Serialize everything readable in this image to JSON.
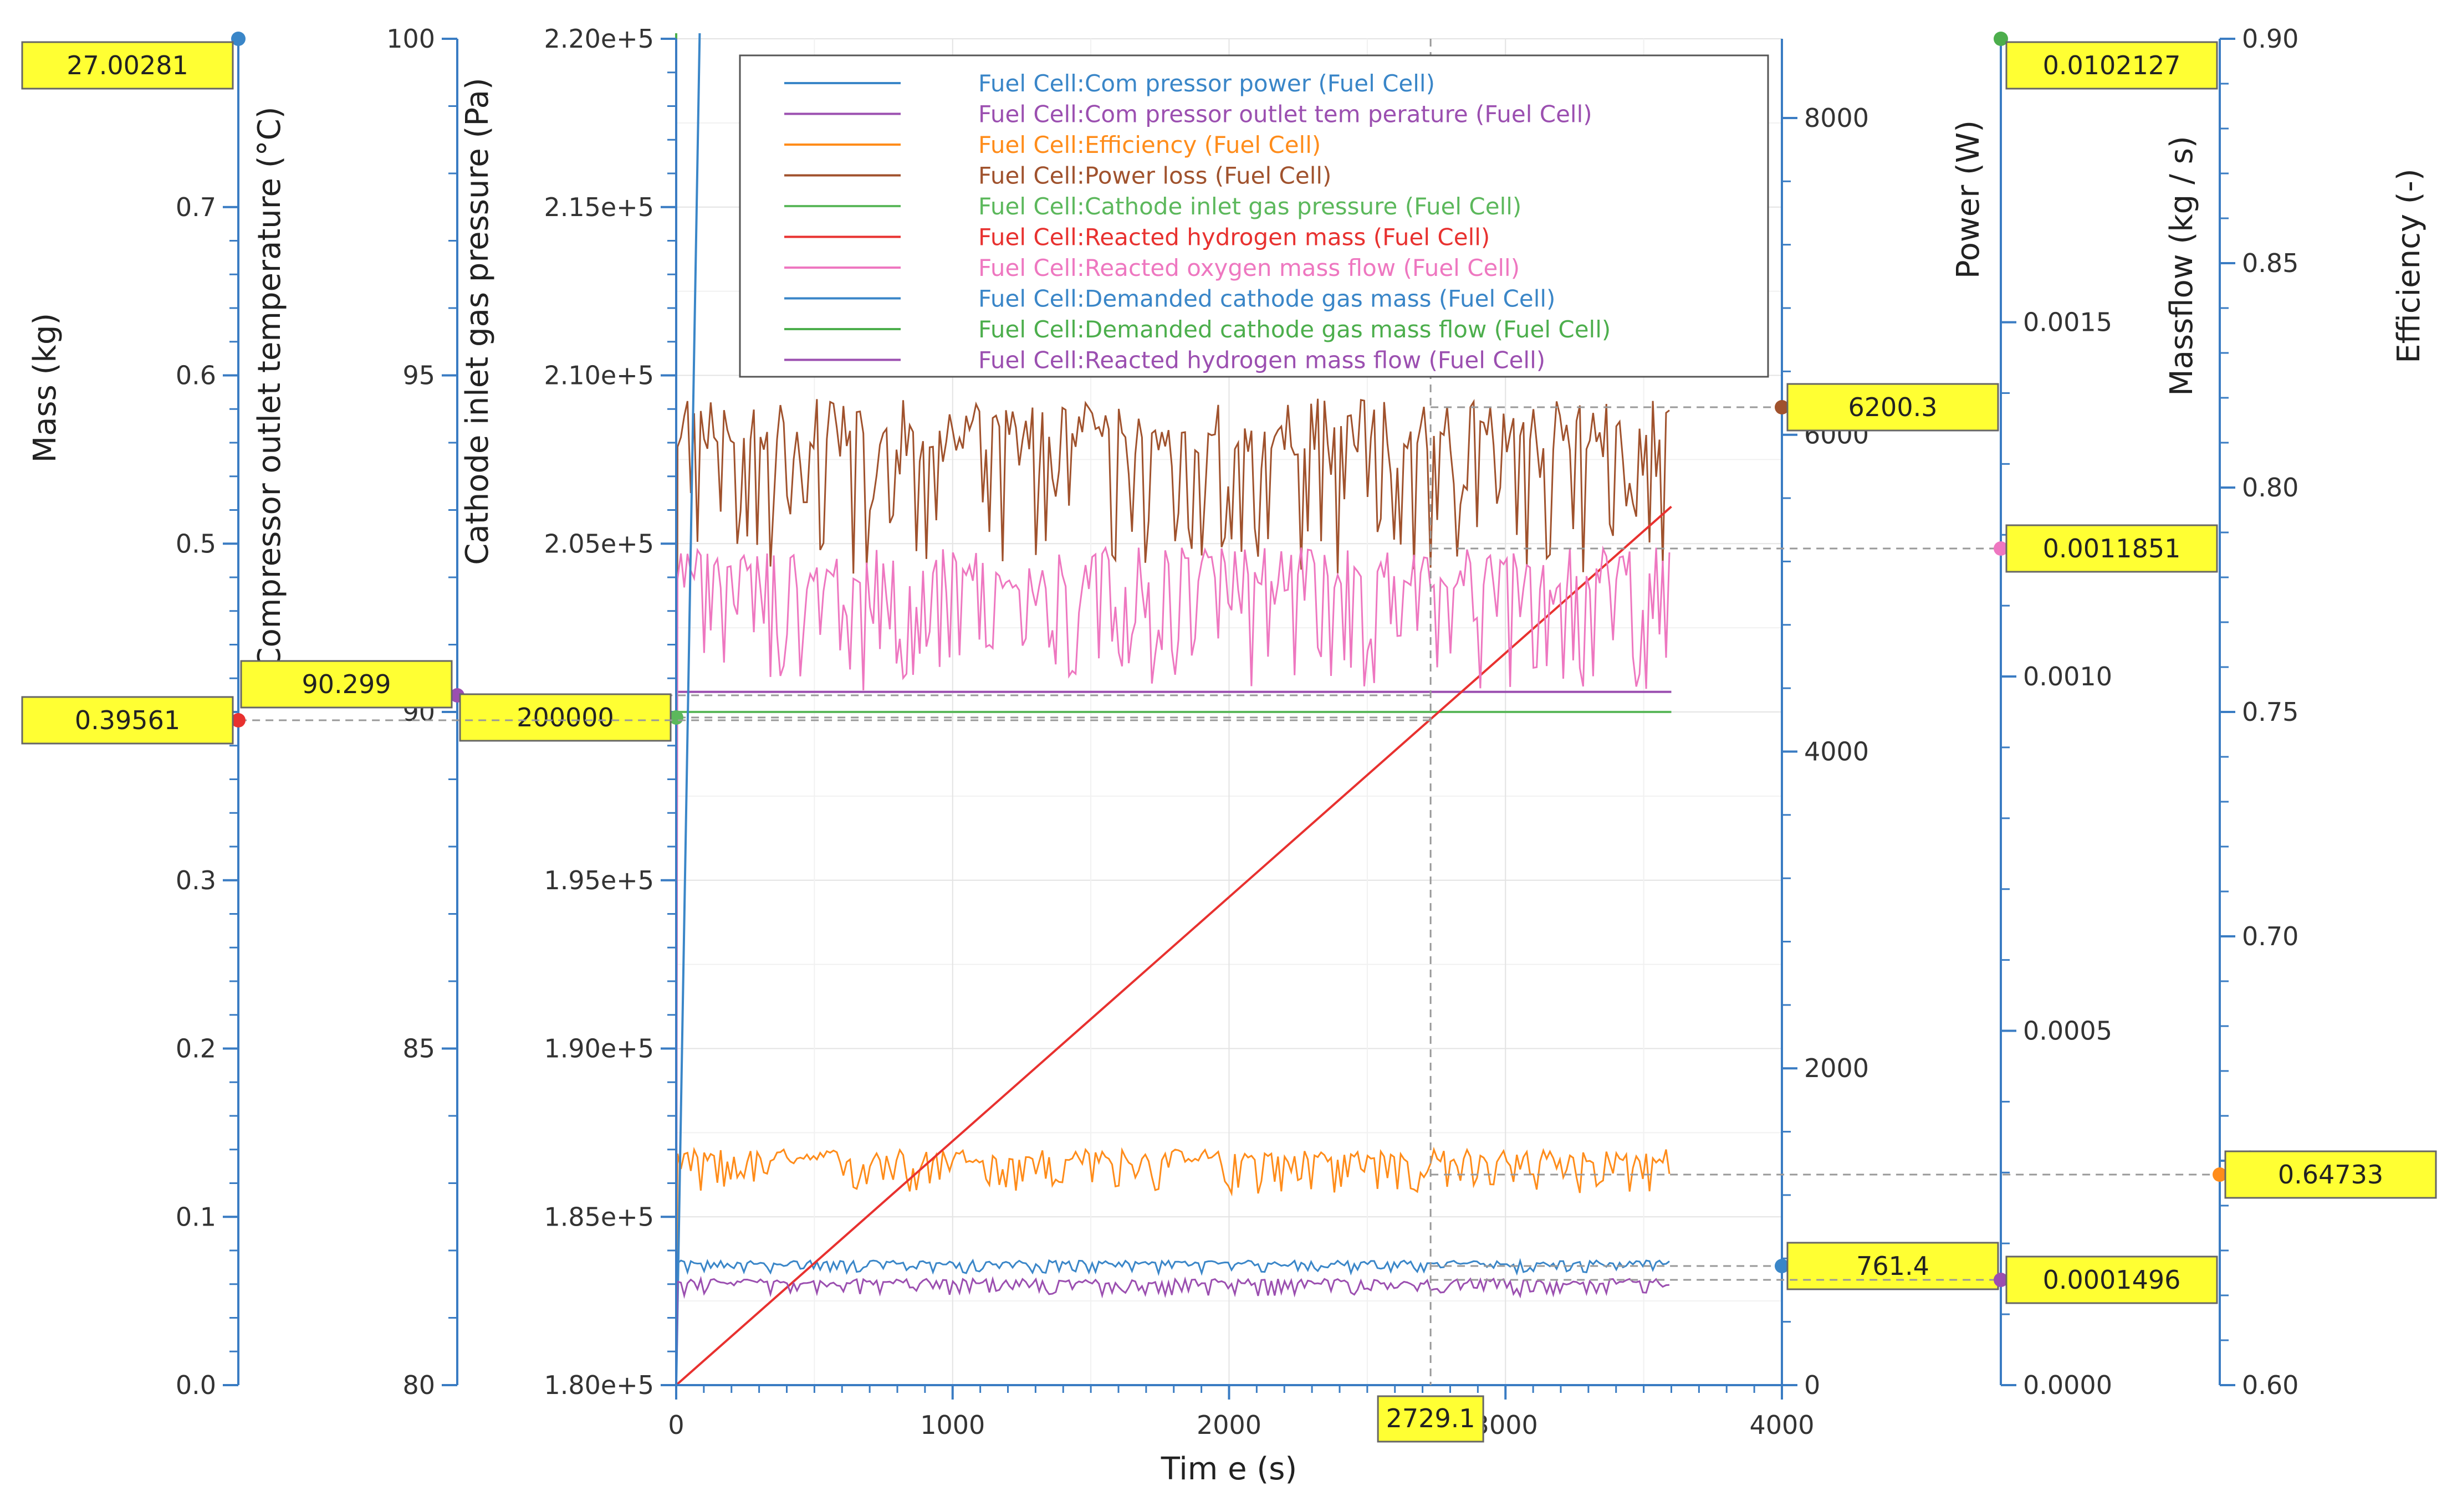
{
  "chart_data": {
    "type": "line",
    "xlabel": "Tim e (s)",
    "xlim": [
      0,
      4000
    ],
    "x_ticks": [
      "0",
      "1000",
      "2000",
      "3000",
      "4000"
    ],
    "cursor_x": "2729.1",
    "axes": [
      {
        "id": "mass",
        "title": "Mass (kg)",
        "range": [
          0,
          0.8
        ],
        "ticks": [
          "0.0",
          "0.1",
          "0.2",
          "0.3",
          "0.4",
          "0.5",
          "0.6",
          "0.7"
        ],
        "color": "#3a7cc3"
      },
      {
        "id": "temp",
        "title": "Compressor outlet temperature (°C)",
        "range": [
          80,
          100
        ],
        "ticks": [
          "80",
          "85",
          "90",
          "95",
          "100"
        ],
        "color": "#3a7cc3"
      },
      {
        "id": "pres",
        "title": "Cathode inlet gas pressure (Pa)",
        "range": [
          180000,
          220000
        ],
        "ticks": [
          "1.80e+5",
          "1.85e+5",
          "1.90e+5",
          "1.95e+5",
          "2.00e+5",
          "2.05e+5",
          "2.10e+5",
          "2.15e+5",
          "2.20e+5"
        ],
        "color": "#3a7cc3"
      },
      {
        "id": "power",
        "title": "Power (W)",
        "range": [
          0,
          8500
        ],
        "ticks": [
          "0",
          "2000",
          "4000",
          "6000",
          "8000"
        ],
        "color": "#3a7cc3"
      },
      {
        "id": "massflow",
        "title": "Massflow (kg / s)",
        "range": [
          0,
          0.0019
        ],
        "ticks": [
          "0.0000",
          "0.0005",
          "0.0010",
          "0.0015"
        ],
        "color": "#3a7cc3"
      },
      {
        "id": "eff",
        "title": "Efficiency (-)",
        "range": [
          0.6,
          0.9
        ],
        "ticks": [
          "0.60",
          "0.65",
          "0.70",
          "0.75",
          "0.80",
          "0.85",
          "0.90"
        ],
        "color": "#3a7cc3"
      }
    ],
    "series": [
      {
        "name": "Fuel Cell:Com pressor power (Fuel Cell)",
        "color": "#3a86c8",
        "axis": "power",
        "kind": "noisy",
        "base": 770,
        "amp": 40,
        "cursor_value": "761.4"
      },
      {
        "name": "Fuel Cell:Com pressor outlet tem perature (Fuel Cell)",
        "color": "#9b4fb0",
        "axis": "temp",
        "kind": "flat",
        "base": 90.299,
        "cursor_value": "90.299"
      },
      {
        "name": "Fuel Cell:Efficiency (Fuel Cell)",
        "color": "#ff8c1a",
        "axis": "eff",
        "kind": "noisy",
        "base": 0.6505,
        "amp": 0.005,
        "cursor_value": "0.64733"
      },
      {
        "name": "Fuel Cell:Power loss (Fuel Cell)",
        "color": "#a0522d",
        "axis": "power",
        "kind": "noisy",
        "base": 6000,
        "amp": 550,
        "cursor_value": "6200.3"
      },
      {
        "name": "Fuel Cell:Cathode inlet gas pressure (Fuel Cell)",
        "color": "#5cb85c",
        "axis": "pres",
        "kind": "flat",
        "base": 200000,
        "cursor_value": "200000"
      },
      {
        "name": "Fuel Cell:Reacted hydrogen mass (Fuel Cell)",
        "color": "#e8312f",
        "axis": "mass",
        "kind": "linear",
        "start": 0,
        "end": 0.522,
        "cursor_value": "0.39561"
      },
      {
        "name": "Fuel Cell:Reacted oxygen mass flow (Fuel Cell)",
        "color": "#ee77c0",
        "axis": "massflow",
        "kind": "noisy",
        "base": 0.00114,
        "amp": 0.0001,
        "cursor_value": "0.0011851"
      },
      {
        "name": "Fuel Cell:Demanded cathode gas mass (Fuel Cell)",
        "color": "#3a86c8",
        "axis": "mass",
        "kind": "ramp",
        "start": 0,
        "end": 27.00281,
        "cursor_value": "27.00281"
      },
      {
        "name": "Fuel Cell:Demanded cathode gas mass flow (Fuel Cell)",
        "color": "#4cae4c",
        "axis": "massflow",
        "kind": "step",
        "base": 0.0102127,
        "cursor_value": "0.0102127"
      },
      {
        "name": "Fuel Cell:Reacted hydrogen mass flow (Fuel Cell)",
        "color": "#9b4fb0",
        "axis": "massflow",
        "kind": "noisy",
        "base": 0.000145,
        "amp": 1.2e-05,
        "cursor_value": "0.0001496"
      }
    ]
  }
}
